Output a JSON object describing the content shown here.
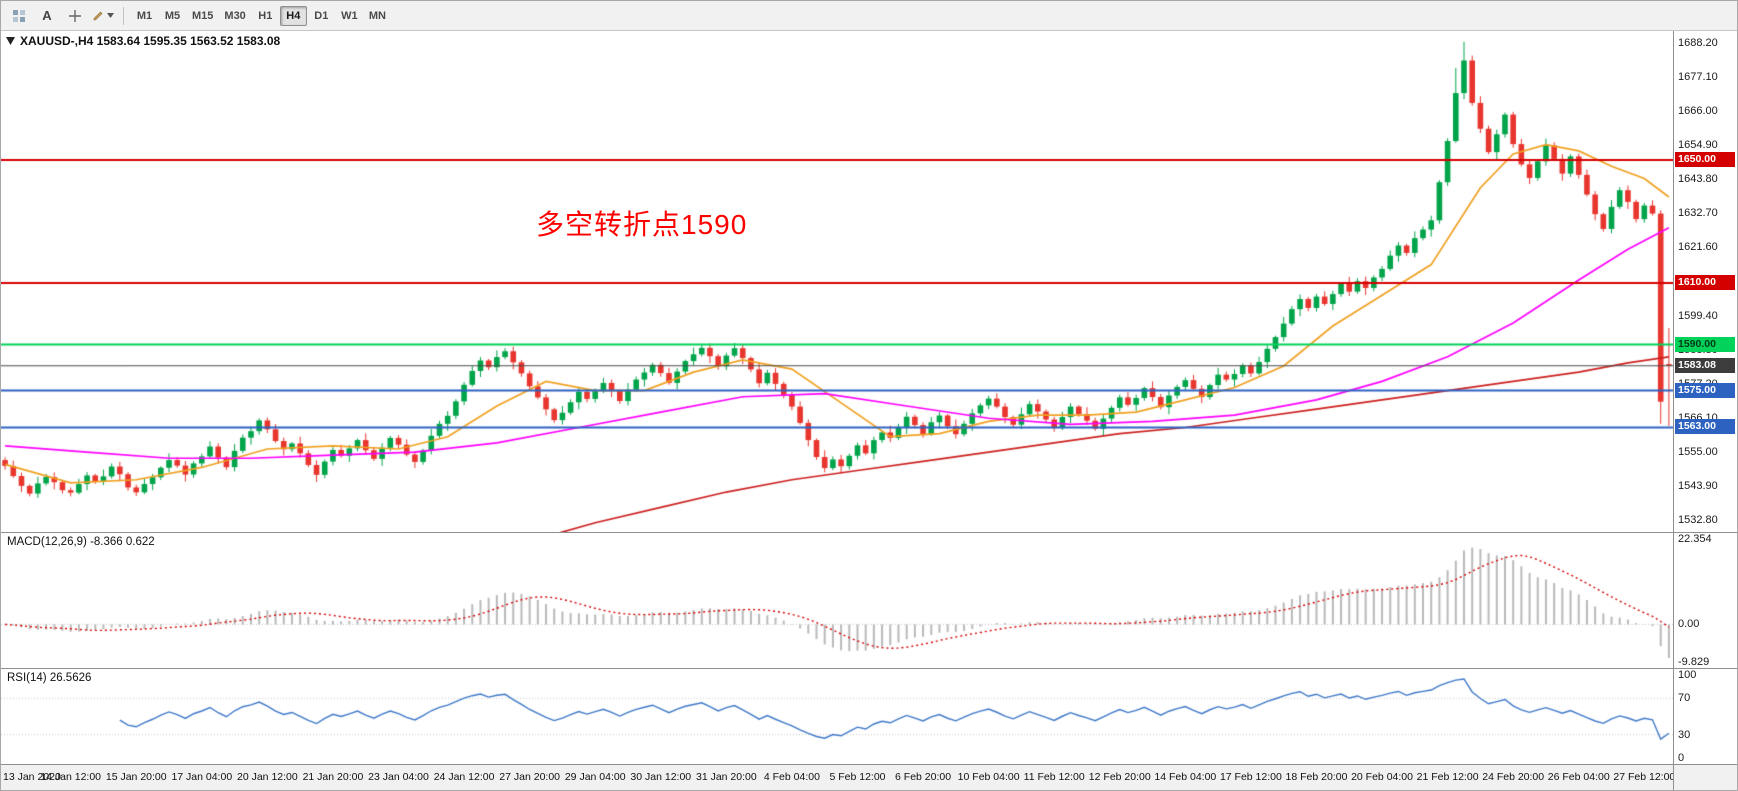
{
  "toolbar": {
    "text_tool": "A",
    "timeframes": [
      "M1",
      "M5",
      "M15",
      "M30",
      "H1",
      "H4",
      "D1",
      "W1",
      "MN"
    ],
    "active_timeframe": "H4"
  },
  "chart_data": {
    "type": "candlestick",
    "symbol": "XAUUSD-",
    "timeframe": "H4",
    "symbol_header": "XAUUSD-,H4  1583.64 1595.35 1563.52 1583.08",
    "ohlc_current": {
      "open": 1583.64,
      "high": 1595.35,
      "low": 1563.52,
      "close": 1583.08
    },
    "annotation": {
      "text": "多空转折点1590",
      "color": "#ff0000"
    },
    "ylim": [
      1529.0,
      1692.0
    ],
    "price_ticks": [
      1688.2,
      1677.1,
      1666.0,
      1654.9,
      1643.8,
      1632.7,
      1621.6,
      1610.5,
      1599.4,
      1588.3,
      1577.2,
      1566.1,
      1555.0,
      1543.9,
      1532.8
    ],
    "x_label_step": 8,
    "x_labels": [
      "13 Jan 2020",
      "14 Jan 12:00",
      "15 Jan 20:00",
      "17 Jan 04:00",
      "20 Jan 12:00",
      "21 Jan 20:00",
      "23 Jan 04:00",
      "24 Jan 12:00",
      "27 Jan 20:00",
      "29 Jan 04:00",
      "30 Jan 12:00",
      "31 Jan 20:00",
      "4 Feb 04:00",
      "5 Feb 12:00",
      "6 Feb 20:00",
      "10 Feb 04:00",
      "11 Feb 12:00",
      "12 Feb 20:00",
      "14 Feb 04:00",
      "17 Feb 12:00",
      "18 Feb 20:00",
      "20 Feb 04:00",
      "21 Feb 12:00",
      "24 Feb 20:00",
      "26 Feb 04:00",
      "27 Feb 12:00"
    ],
    "open_first": 1552.4,
    "closes": [
      1550.5,
      1547.2,
      1544.0,
      1541.5,
      1544.8,
      1546.9,
      1545.2,
      1542.6,
      1541.8,
      1544.6,
      1547.4,
      1545.6,
      1547.1,
      1550.3,
      1547.8,
      1543.5,
      1541.9,
      1544.6,
      1546.8,
      1549.9,
      1552.4,
      1550.6,
      1547.7,
      1551.3,
      1553.6,
      1556.8,
      1553.2,
      1550.1,
      1555.4,
      1559.7,
      1561.8,
      1565.3,
      1562.4,
      1558.6,
      1555.9,
      1557.8,
      1554.6,
      1550.8,
      1547.6,
      1551.9,
      1555.7,
      1553.8,
      1556.2,
      1558.9,
      1555.6,
      1552.8,
      1556.4,
      1559.6,
      1557.4,
      1554.2,
      1551.8,
      1555.6,
      1560.3,
      1564.2,
      1566.8,
      1571.5,
      1576.9,
      1581.4,
      1584.8,
      1582.6,
      1585.9,
      1587.8,
      1584.2,
      1580.6,
      1576.4,
      1572.8,
      1568.9,
      1565.4,
      1567.8,
      1571.2,
      1574.6,
      1572.3,
      1574.8,
      1577.5,
      1574.9,
      1571.6,
      1575.3,
      1578.6,
      1580.9,
      1583.4,
      1580.7,
      1577.5,
      1581.2,
      1584.6,
      1586.8,
      1588.9,
      1586.2,
      1582.9,
      1586.4,
      1588.8,
      1585.6,
      1581.9,
      1577.4,
      1580.8,
      1577.2,
      1573.6,
      1569.8,
      1564.5,
      1558.9,
      1553.4,
      1549.8,
      1552.6,
      1550.4,
      1553.8,
      1557.2,
      1554.6,
      1558.9,
      1561.4,
      1559.6,
      1563.2,
      1566.5,
      1563.8,
      1560.9,
      1564.7,
      1566.9,
      1563.4,
      1560.8,
      1564.2,
      1567.6,
      1570.2,
      1572.4,
      1569.8,
      1566.4,
      1563.9,
      1567.3,
      1570.6,
      1568.2,
      1565.6,
      1562.8,
      1566.4,
      1569.8,
      1567.4,
      1565.2,
      1562.6,
      1565.9,
      1569.4,
      1572.8,
      1570.4,
      1572.6,
      1575.8,
      1572.9,
      1569.6,
      1573.4,
      1576.2,
      1578.4,
      1575.6,
      1572.9,
      1576.8,
      1580.2,
      1578.6,
      1580.4,
      1583.2,
      1580.6,
      1584.3,
      1588.6,
      1592.4,
      1596.8,
      1601.5,
      1604.8,
      1601.9,
      1605.6,
      1603.2,
      1606.4,
      1609.8,
      1607.2,
      1610.6,
      1608.4,
      1611.8,
      1614.6,
      1618.9,
      1622.2,
      1619.8,
      1624.6,
      1627.4,
      1630.4,
      1642.8,
      1656.2,
      1671.8,
      1682.4,
      1668.6,
      1660.2,
      1652.6,
      1658.4,
      1664.8,
      1655.2,
      1648.6,
      1644.2,
      1649.6,
      1654.8,
      1650.4,
      1645.6,
      1651.2,
      1645.2,
      1638.8,
      1632.4,
      1627.6,
      1634.8,
      1640.2,
      1636.4,
      1630.8,
      1635.2,
      1632.6,
      1571.4,
      1583.08
    ],
    "wick_pattern": [
      [
        0.9,
        1.2
      ],
      [
        1.7,
        0.6
      ],
      [
        1.1,
        2.0
      ],
      [
        0.5,
        0.9
      ],
      [
        2.2,
        1.4
      ],
      [
        1.0,
        0.7
      ],
      [
        1.5,
        2.3
      ],
      [
        0.7,
        1.1
      ]
    ],
    "overrides": {
      "177": {
        "h": 1680.0
      },
      "178": {
        "h": 1688.5
      },
      "179": {
        "h": 1684.0
      },
      "202": {
        "l": 1564.2
      },
      "203": {
        "o": 1583.64,
        "h": 1595.35,
        "l": 1563.52,
        "c": 1583.08
      }
    },
    "levels": [
      {
        "price": 1650.0,
        "color": "#d40000",
        "width": 2,
        "badge_bg": "#d40000",
        "badge_text": "#ffffff"
      },
      {
        "price": 1610.0,
        "color": "#d40000",
        "width": 2,
        "badge_bg": "#d40000",
        "badge_text": "#ffffff"
      },
      {
        "price": 1590.0,
        "color": "#00d25a",
        "width": 2,
        "badge_bg": "#00d25a",
        "badge_text": "#003b16"
      },
      {
        "price": 1575.0,
        "color": "#2d62c0",
        "width": 2,
        "badge_bg": "#2d62c0",
        "badge_text": "#ffffff"
      },
      {
        "price": 1563.0,
        "color": "#2d62c0",
        "width": 2,
        "badge_bg": "#2d62c0",
        "badge_text": "#ffffff"
      }
    ],
    "current_price": {
      "value": 1583.08,
      "text": "1583.08",
      "line_color": "#4a4a4a",
      "badge_bg": "#3c3c3c",
      "badge_text": "#ffffff"
    },
    "moving_averages": [
      {
        "name": "ma-fast",
        "color": "#f0a020",
        "points": [
          [
            0,
            1551
          ],
          [
            8,
            1545
          ],
          [
            16,
            1546
          ],
          [
            24,
            1550
          ],
          [
            32,
            1556
          ],
          [
            40,
            1557
          ],
          [
            48,
            1556
          ],
          [
            54,
            1560
          ],
          [
            60,
            1570
          ],
          [
            66,
            1578
          ],
          [
            72,
            1575
          ],
          [
            78,
            1575
          ],
          [
            84,
            1581
          ],
          [
            90,
            1585
          ],
          [
            96,
            1582
          ],
          [
            102,
            1571
          ],
          [
            108,
            1560
          ],
          [
            114,
            1561
          ],
          [
            120,
            1565
          ],
          [
            126,
            1567
          ],
          [
            132,
            1567
          ],
          [
            138,
            1568
          ],
          [
            144,
            1572
          ],
          [
            150,
            1576
          ],
          [
            156,
            1583
          ],
          [
            162,
            1596
          ],
          [
            168,
            1606
          ],
          [
            174,
            1616
          ],
          [
            180,
            1641
          ],
          [
            184,
            1652
          ],
          [
            188,
            1655
          ],
          [
            192,
            1653
          ],
          [
            196,
            1648
          ],
          [
            200,
            1644
          ],
          [
            203,
            1638
          ]
        ]
      },
      {
        "name": "ma-mid",
        "color": "#ff00ff",
        "points": [
          [
            0,
            1557
          ],
          [
            10,
            1555
          ],
          [
            20,
            1553
          ],
          [
            30,
            1553
          ],
          [
            40,
            1554
          ],
          [
            50,
            1555
          ],
          [
            60,
            1558
          ],
          [
            70,
            1563
          ],
          [
            80,
            1568
          ],
          [
            90,
            1573
          ],
          [
            100,
            1574
          ],
          [
            110,
            1570
          ],
          [
            120,
            1566
          ],
          [
            130,
            1564
          ],
          [
            140,
            1565
          ],
          [
            150,
            1567
          ],
          [
            160,
            1572
          ],
          [
            168,
            1578
          ],
          [
            176,
            1586
          ],
          [
            184,
            1597
          ],
          [
            192,
            1611
          ],
          [
            198,
            1621
          ],
          [
            203,
            1628
          ]
        ]
      },
      {
        "name": "ma-slow",
        "color": "#cc2020",
        "points": [
          [
            64,
            1526
          ],
          [
            72,
            1532
          ],
          [
            80,
            1537
          ],
          [
            88,
            1542
          ],
          [
            96,
            1546
          ],
          [
            104,
            1549
          ],
          [
            112,
            1552
          ],
          [
            120,
            1555
          ],
          [
            128,
            1558
          ],
          [
            136,
            1561
          ],
          [
            144,
            1563
          ],
          [
            152,
            1566
          ],
          [
            160,
            1569
          ],
          [
            168,
            1572
          ],
          [
            176,
            1575
          ],
          [
            184,
            1578
          ],
          [
            192,
            1581
          ],
          [
            198,
            1584
          ],
          [
            203,
            1586
          ]
        ]
      }
    ],
    "macd": {
      "label": "MACD(12,26,9) -8.366 0.622",
      "params": [
        12,
        26,
        9
      ],
      "values": [
        -8.366,
        0.622
      ],
      "ylim": [
        -9.829,
        22.354
      ],
      "axis_ticks": [
        {
          "v": 22.354,
          "t": "22.354"
        },
        {
          "v": 0,
          "t": "0.00"
        },
        {
          "v": -9.829,
          "t": "-9.829"
        }
      ],
      "hist_color": "#b9b9b9",
      "signal_color": "#d40000"
    },
    "rsi": {
      "label": "RSI(14) 26.5626",
      "period": 14,
      "value": 26.5626,
      "ylim": [
        0,
        100
      ],
      "levels": [
        70,
        30
      ],
      "axis_ticks": [
        {
          "v": 100,
          "t": "100"
        },
        {
          "v": 70,
          "t": "70"
        },
        {
          "v": 30,
          "t": "30"
        },
        {
          "v": 0,
          "t": "0"
        }
      ],
      "line_color": "#3e78c8"
    },
    "colors": {
      "bull": "#00a44a",
      "bear": "#e8352e",
      "bg": "#ffffff"
    }
  }
}
